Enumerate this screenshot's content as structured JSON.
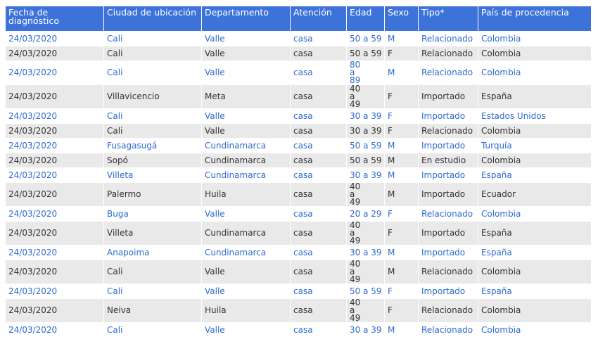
{
  "table": {
    "headers": [
      "Fecha de diagnóstico",
      "Ciudad de ubicación",
      "Departamento",
      "Atención",
      "Edad",
      "Sexo",
      "Tipo*",
      "País de procedencia"
    ],
    "rows": [
      [
        "24/03/2020",
        "Cali",
        "Valle",
        "casa",
        "50 a 59",
        "M",
        "Relacionado",
        "Colombia"
      ],
      [
        "24/03/2020",
        "Cali",
        "Valle",
        "casa",
        "50 a 59",
        "F",
        "Relacionado",
        "Colombia"
      ],
      [
        "24/03/2020",
        "Cali",
        "Valle",
        "casa",
        "80 a 89",
        "M",
        "Relacionado",
        "Colombia"
      ],
      [
        "24/03/2020",
        "Villavicencio",
        "Meta",
        "casa",
        "40 a 49",
        "F",
        "Importado",
        "España"
      ],
      [
        "24/03/2020",
        "Cali",
        "Valle",
        "casa",
        "30 a 39",
        "F",
        "Importado",
        "Estados Unidos"
      ],
      [
        "24/03/2020",
        "Cali",
        "Valle",
        "casa",
        "30 a 39",
        "F",
        "Relacionado",
        "Colombia"
      ],
      [
        "24/03/2020",
        "Fusagasugá",
        "Cundinamarca",
        "casa",
        "50 a 59",
        "M",
        "Importado",
        "Turquía"
      ],
      [
        "24/03/2020",
        "Sopó",
        "Cundinamarca",
        "casa",
        "50 a 59",
        "M",
        "En estudio",
        "Colombia"
      ],
      [
        "24/03/2020",
        "Villeta",
        "Cundinamarca",
        "casa",
        "30 a 39",
        "M",
        "Importado",
        "España"
      ],
      [
        "24/03/2020",
        "Palermo",
        "Huila",
        "casa",
        "40 a 49",
        "M",
        "Importado",
        "Ecuador"
      ],
      [
        "24/03/2020",
        "Buga",
        "Valle",
        "casa",
        "20 a 29",
        "F",
        "Relacionado",
        "Colombia"
      ],
      [
        "24/03/2020",
        "Villeta",
        "Cundinamarca",
        "casa",
        "40 a 49",
        "F",
        "Importado",
        "España"
      ],
      [
        "24/03/2020",
        "Anapoima",
        "Cundinamarca",
        "casa",
        "30 a 39",
        "M",
        "Importado",
        "España"
      ],
      [
        "24/03/2020",
        "Cali",
        "Valle",
        "casa",
        "40 a 49",
        "M",
        "Relacionado",
        "Colombia"
      ],
      [
        "24/03/2020",
        "Cali",
        "Valle",
        "casa",
        "50 a 59",
        "F",
        "Importado",
        "España"
      ],
      [
        "24/03/2020",
        "Neiva",
        "Huila",
        "casa",
        "40 a 49",
        "F",
        "Relacionado",
        "Colombia"
      ],
      [
        "24/03/2020",
        "Cali",
        "Valle",
        "casa",
        "30 a 39",
        "M",
        "Relacionado",
        "Colombia"
      ]
    ]
  }
}
